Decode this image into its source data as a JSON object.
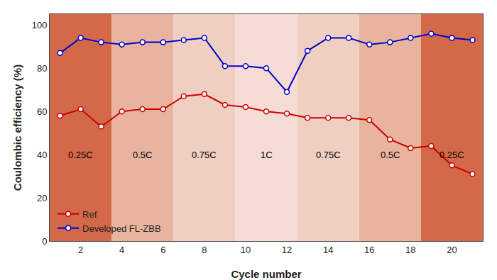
{
  "chart_data": {
    "type": "line",
    "x": [
      1,
      2,
      3,
      4,
      5,
      6,
      7,
      8,
      9,
      10,
      11,
      12,
      13,
      14,
      15,
      16,
      17,
      18,
      19,
      20,
      21
    ],
    "series": [
      {
        "name": "Ref",
        "color": "#cc0000",
        "marker": "circle",
        "values": [
          58,
          61,
          53,
          60,
          61,
          61,
          67,
          68,
          63,
          62,
          60,
          59,
          57,
          57,
          57,
          56,
          47,
          43,
          44,
          35,
          31
        ]
      },
      {
        "name": "Developed FL-ZBB",
        "color": "#0000cc",
        "marker": "circle",
        "values": [
          87,
          94,
          92,
          91,
          92,
          92,
          93,
          94,
          81,
          81,
          80,
          69,
          88,
          94,
          94,
          91,
          92,
          94,
          96,
          94,
          93
        ]
      }
    ],
    "zones": [
      {
        "xmin": 0.5,
        "xmax": 3.5,
        "color": "#d4694a"
      },
      {
        "xmin": 3.5,
        "xmax": 6.5,
        "color": "#e8b49e"
      },
      {
        "xmin": 6.5,
        "xmax": 9.5,
        "color": "#f0cfc3"
      },
      {
        "xmin": 9.5,
        "xmax": 12.5,
        "color": "#f5ddd5"
      },
      {
        "xmin": 12.5,
        "xmax": 15.5,
        "color": "#f0cfc3"
      },
      {
        "xmin": 15.5,
        "xmax": 18.5,
        "color": "#e8b49e"
      },
      {
        "xmin": 18.5,
        "xmax": 21.5,
        "color": "#d4694a"
      }
    ],
    "annotations": [
      {
        "text": "0.25C",
        "x": 2,
        "y": 40
      },
      {
        "text": "0.5C",
        "x": 5,
        "y": 40
      },
      {
        "text": "0.75C",
        "x": 8,
        "y": 40
      },
      {
        "text": "1C",
        "x": 11,
        "y": 40
      },
      {
        "text": "0.75C",
        "x": 14,
        "y": 40
      },
      {
        "text": "0.5C",
        "x": 17,
        "y": 40
      },
      {
        "text": "0.25C",
        "x": 20,
        "y": 40
      }
    ],
    "xlabel": "Cycle number",
    "ylabel": "Coulombic efficiency (%)",
    "xlim": [
      0.5,
      21.5
    ],
    "ylim": [
      0,
      105
    ],
    "xticks": [
      2,
      4,
      6,
      8,
      10,
      12,
      14,
      16,
      18,
      20
    ],
    "yticks": [
      0,
      20,
      40,
      60,
      80,
      100
    ],
    "grid": false,
    "legend": "lower left"
  }
}
